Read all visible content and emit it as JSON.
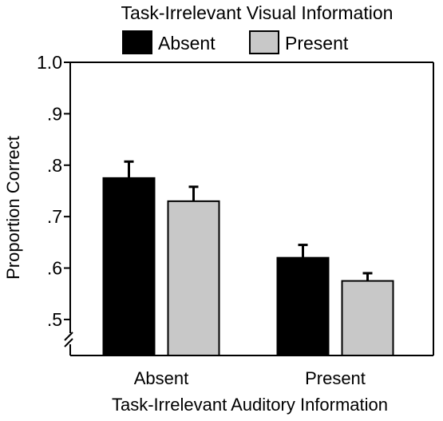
{
  "chart_data": {
    "type": "bar",
    "legend_title": "Task-Irrelevant Visual Information",
    "xlabel": "Task-Irrelevant Auditory Information",
    "ylabel": "Proportion Correct",
    "categories": [
      "Absent",
      "Present"
    ],
    "series": [
      {
        "name": "Absent",
        "color": "#000000",
        "values": [
          0.775,
          0.62
        ],
        "errors": [
          0.032,
          0.025
        ]
      },
      {
        "name": "Present",
        "color": "#c8c8c8",
        "values": [
          0.73,
          0.575
        ],
        "errors": [
          0.028,
          0.015
        ]
      }
    ],
    "ylim": [
      0.43,
      1.0
    ],
    "yticks": [
      0.5,
      0.6,
      0.7,
      0.8,
      0.9,
      1.0
    ],
    "ytick_labels": [
      ".5",
      ".6",
      ".7",
      ".8",
      ".9",
      "1.0"
    ],
    "axis_break": true,
    "grid": false,
    "legend_position": "top"
  }
}
